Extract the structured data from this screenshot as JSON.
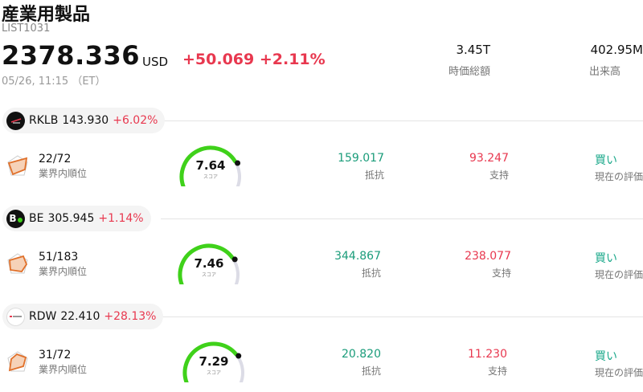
{
  "header": {
    "title": "産業用製品",
    "code": "LIST1031",
    "price": "2378.336",
    "currency": "USD",
    "change": "+50.069 +2.11%",
    "time": "05/26, 11:15 （ET）"
  },
  "stats": [
    {
      "value": "3.45T",
      "label": "時価総額"
    },
    {
      "value": "402.95M",
      "label": "出来高"
    }
  ],
  "labels": {
    "rank": "業界内順位",
    "score": "スコア",
    "resistance": "抵抗",
    "support": "支持",
    "rating": "現在の評価"
  },
  "stocks": [
    {
      "symbol": "RKLB",
      "price": "143.930",
      "change": "+6.02%",
      "rank": "22/72",
      "score": 7.64,
      "score_text": "7.64",
      "resistance": "159.017",
      "support": "93.247",
      "rating": "買い"
    },
    {
      "symbol": "BE",
      "price": "305.945",
      "change": "+1.14%",
      "rank": "51/183",
      "score": 7.46,
      "score_text": "7.46",
      "resistance": "344.867",
      "support": "238.077",
      "rating": "買い"
    },
    {
      "symbol": "RDW",
      "price": "22.410",
      "change": "+28.13%",
      "rank": "31/72",
      "score": 7.29,
      "score_text": "7.29",
      "resistance": "20.820",
      "support": "11.230",
      "rating": "買い"
    }
  ],
  "logo_text": {
    "be": "B"
  },
  "colors": {
    "up": "#e8384f",
    "resistance": "#1a9c7a",
    "rating": "#1aa88a",
    "gauge_fill": "#3fd11a",
    "gauge_track": "#dcdce6"
  },
  "icons": {
    "rank": "radar-chart-icon",
    "gauge": "score-gauge-icon"
  }
}
